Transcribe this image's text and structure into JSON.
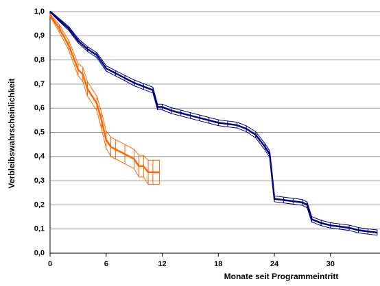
{
  "chart_data": {
    "type": "line",
    "x_label": "Monate seit Programmeintritt",
    "y_label": "Verbleibswahrscheinlichkeit",
    "xlim": [
      0,
      35.3
    ],
    "xticks": [
      0,
      6,
      12,
      18,
      24,
      30
    ],
    "ylim": [
      0,
      1
    ],
    "yticks": [
      {
        "value": 0,
        "label": "0,0"
      },
      {
        "value": 0.1,
        "label": "0,1"
      },
      {
        "value": 0.2,
        "label": "0,2"
      },
      {
        "value": 0.3,
        "label": "0,3"
      },
      {
        "value": 0.4,
        "label": "0,4"
      },
      {
        "value": 0.5,
        "label": "0,5"
      },
      {
        "value": 0.6,
        "label": "0,6"
      },
      {
        "value": 0.7,
        "label": "0,7"
      },
      {
        "value": 0.8,
        "label": "0,8"
      },
      {
        "value": 0.9,
        "label": "0,9"
      },
      {
        "value": 1,
        "label": "1,0"
      }
    ],
    "grid": true,
    "series": [
      {
        "color": "#000080",
        "x": [
          0,
          1,
          2,
          3,
          4,
          5,
          6,
          7,
          8,
          9,
          10,
          11,
          11.5,
          12,
          13,
          14,
          15,
          16,
          17,
          18,
          19,
          20,
          21,
          22,
          23,
          23.5,
          24,
          25,
          26,
          27,
          27.5,
          28,
          29,
          30,
          31,
          32,
          33,
          34,
          35
        ],
        "values": [
          1.0,
          0.965,
          0.93,
          0.88,
          0.845,
          0.82,
          0.765,
          0.745,
          0.725,
          0.705,
          0.69,
          0.675,
          0.605,
          0.605,
          0.59,
          0.58,
          0.57,
          0.56,
          0.55,
          0.54,
          0.535,
          0.53,
          0.515,
          0.49,
          0.44,
          0.41,
          0.225,
          0.22,
          0.215,
          0.21,
          0.2,
          0.14,
          0.125,
          0.115,
          0.11,
          0.105,
          0.095,
          0.09,
          0.085
        ],
        "errors": [
          0.003,
          0.006,
          0.008,
          0.009,
          0.01,
          0.01,
          0.011,
          0.011,
          0.011,
          0.012,
          0.012,
          0.012,
          0.012,
          0.012,
          0.012,
          0.012,
          0.012,
          0.012,
          0.012,
          0.012,
          0.012,
          0.012,
          0.012,
          0.013,
          0.013,
          0.013,
          0.012,
          0.012,
          0.012,
          0.012,
          0.012,
          0.011,
          0.011,
          0.011,
          0.011,
          0.011,
          0.011,
          0.011,
          0.011
        ]
      },
      {
        "color": "#ff6600",
        "x": [
          0,
          1,
          2,
          3,
          3.5,
          4,
          5,
          5.5,
          6,
          6.5,
          7,
          8,
          9,
          9.5,
          10,
          10.5,
          11,
          11.7
        ],
        "values": [
          0.985,
          0.93,
          0.86,
          0.76,
          0.74,
          0.68,
          0.62,
          0.55,
          0.47,
          0.44,
          0.43,
          0.41,
          0.39,
          0.36,
          0.36,
          0.335,
          0.335,
          0.335
        ],
        "errors": [
          0.005,
          0.015,
          0.02,
          0.025,
          0.03,
          0.03,
          0.03,
          0.035,
          0.035,
          0.04,
          0.04,
          0.04,
          0.04,
          0.045,
          0.045,
          0.05,
          0.05,
          0.05
        ]
      }
    ]
  }
}
